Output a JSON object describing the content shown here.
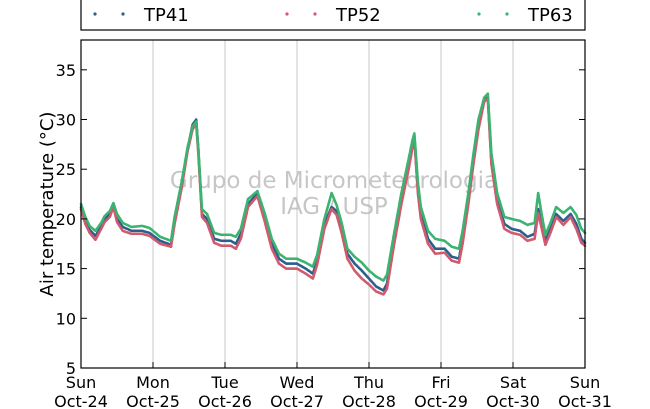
{
  "chart_data": {
    "type": "scatter",
    "ylabel": "Air temperature (°C)",
    "xlabel": "",
    "title": "",
    "ylim": [
      5,
      38
    ],
    "xlim": [
      0,
      7
    ],
    "yticks": [
      5,
      10,
      15,
      20,
      25,
      30,
      35
    ],
    "xticks": [
      {
        "x": 0,
        "day": "Sun",
        "date": "Oct-24"
      },
      {
        "x": 1,
        "day": "Mon",
        "date": "Oct-25"
      },
      {
        "x": 2,
        "day": "Tue",
        "date": "Oct-26"
      },
      {
        "x": 3,
        "day": "Wed",
        "date": "Oct-27"
      },
      {
        "x": 4,
        "day": "Thu",
        "date": "Oct-28"
      },
      {
        "x": 5,
        "day": "Fri",
        "date": "Oct-29"
      },
      {
        "x": 6,
        "day": "Sat",
        "date": "Oct-30"
      },
      {
        "x": 7,
        "day": "Sun",
        "date": "Oct-31"
      }
    ],
    "grid": "vertical",
    "legend_position": "top",
    "watermark": [
      "Grupo de Micrometeorologia",
      "IAG / USP"
    ],
    "series": [
      {
        "name": "TP41",
        "color": "#2c5f8d",
        "points": [
          [
            0,
            21.2
          ],
          [
            0.06,
            19.8
          ],
          [
            0.12,
            18.9
          ],
          [
            0.2,
            18.3
          ],
          [
            0.28,
            19.2
          ],
          [
            0.33,
            20.0
          ],
          [
            0.4,
            20.5
          ],
          [
            0.45,
            21.5
          ],
          [
            0.5,
            20.0
          ],
          [
            0.58,
            19.2
          ],
          [
            0.7,
            18.8
          ],
          [
            0.85,
            18.8
          ],
          [
            0.95,
            18.6
          ],
          [
            1.1,
            17.8
          ],
          [
            1.25,
            17.4
          ],
          [
            1.3,
            19.8
          ],
          [
            1.4,
            23.5
          ],
          [
            1.48,
            27.0
          ],
          [
            1.55,
            29.5
          ],
          [
            1.6,
            30.0
          ],
          [
            1.63,
            27.0
          ],
          [
            1.68,
            20.5
          ],
          [
            1.75,
            20.0
          ],
          [
            1.85,
            18.0
          ],
          [
            1.95,
            17.8
          ],
          [
            2.08,
            17.8
          ],
          [
            2.15,
            17.5
          ],
          [
            2.22,
            18.5
          ],
          [
            2.32,
            21.5
          ],
          [
            2.45,
            22.6
          ],
          [
            2.55,
            20.2
          ],
          [
            2.65,
            17.5
          ],
          [
            2.75,
            16.0
          ],
          [
            2.85,
            15.5
          ],
          [
            3.0,
            15.5
          ],
          [
            3.12,
            15.0
          ],
          [
            3.22,
            14.5
          ],
          [
            3.28,
            15.8
          ],
          [
            3.38,
            19.5
          ],
          [
            3.48,
            21.2
          ],
          [
            3.55,
            20.8
          ],
          [
            3.62,
            19.0
          ],
          [
            3.7,
            16.5
          ],
          [
            3.8,
            15.5
          ],
          [
            3.9,
            14.8
          ],
          [
            4.0,
            14.0
          ],
          [
            4.1,
            13.2
          ],
          [
            4.2,
            12.8
          ],
          [
            4.25,
            13.5
          ],
          [
            4.35,
            18.0
          ],
          [
            4.45,
            22.0
          ],
          [
            4.55,
            25.5
          ],
          [
            4.6,
            27.5
          ],
          [
            4.63,
            28.3
          ],
          [
            4.68,
            23.0
          ],
          [
            4.72,
            20.5
          ],
          [
            4.82,
            18.0
          ],
          [
            4.92,
            17.0
          ],
          [
            5.05,
            17.0
          ],
          [
            5.15,
            16.2
          ],
          [
            5.25,
            16.0
          ],
          [
            5.3,
            18.0
          ],
          [
            5.38,
            22.0
          ],
          [
            5.45,
            26.0
          ],
          [
            5.52,
            29.5
          ],
          [
            5.6,
            32.0
          ],
          [
            5.65,
            32.3
          ],
          [
            5.7,
            26.0
          ],
          [
            5.78,
            22.0
          ],
          [
            5.88,
            19.5
          ],
          [
            5.98,
            19.0
          ],
          [
            6.1,
            18.8
          ],
          [
            6.2,
            18.2
          ],
          [
            6.3,
            18.5
          ],
          [
            6.35,
            21.0
          ],
          [
            6.4,
            19.5
          ],
          [
            6.45,
            17.8
          ],
          [
            6.52,
            19.0
          ],
          [
            6.6,
            20.5
          ],
          [
            6.7,
            19.8
          ],
          [
            6.8,
            20.5
          ],
          [
            6.88,
            19.5
          ],
          [
            6.95,
            18.0
          ],
          [
            7.0,
            17.6
          ]
        ]
      },
      {
        "name": "TP52",
        "color": "#d05a6e",
        "points": [
          [
            0,
            21.0
          ],
          [
            0.06,
            19.5
          ],
          [
            0.12,
            18.6
          ],
          [
            0.2,
            17.9
          ],
          [
            0.28,
            19.0
          ],
          [
            0.33,
            19.7
          ],
          [
            0.4,
            20.2
          ],
          [
            0.45,
            21.2
          ],
          [
            0.5,
            19.7
          ],
          [
            0.58,
            18.8
          ],
          [
            0.7,
            18.5
          ],
          [
            0.85,
            18.5
          ],
          [
            0.95,
            18.3
          ],
          [
            1.1,
            17.5
          ],
          [
            1.25,
            17.2
          ],
          [
            1.3,
            19.5
          ],
          [
            1.4,
            23.2
          ],
          [
            1.48,
            26.8
          ],
          [
            1.55,
            29.0
          ],
          [
            1.6,
            29.6
          ],
          [
            1.63,
            26.5
          ],
          [
            1.68,
            20.2
          ],
          [
            1.75,
            19.6
          ],
          [
            1.85,
            17.6
          ],
          [
            1.95,
            17.3
          ],
          [
            2.08,
            17.3
          ],
          [
            2.15,
            17.0
          ],
          [
            2.22,
            18.0
          ],
          [
            2.32,
            21.2
          ],
          [
            2.45,
            22.3
          ],
          [
            2.55,
            19.8
          ],
          [
            2.65,
            17.0
          ],
          [
            2.75,
            15.5
          ],
          [
            2.85,
            15.0
          ],
          [
            3.0,
            15.0
          ],
          [
            3.12,
            14.5
          ],
          [
            3.22,
            14.0
          ],
          [
            3.28,
            15.4
          ],
          [
            3.38,
            19.0
          ],
          [
            3.48,
            21.0
          ],
          [
            3.55,
            20.4
          ],
          [
            3.62,
            18.6
          ],
          [
            3.7,
            16.0
          ],
          [
            3.8,
            14.8
          ],
          [
            3.9,
            14.0
          ],
          [
            4.0,
            13.4
          ],
          [
            4.1,
            12.7
          ],
          [
            4.2,
            12.4
          ],
          [
            4.25,
            13.0
          ],
          [
            4.35,
            17.5
          ],
          [
            4.45,
            21.5
          ],
          [
            4.55,
            25.0
          ],
          [
            4.6,
            27.0
          ],
          [
            4.63,
            28.0
          ],
          [
            4.68,
            22.5
          ],
          [
            4.72,
            20.0
          ],
          [
            4.82,
            17.5
          ],
          [
            4.92,
            16.5
          ],
          [
            5.05,
            16.6
          ],
          [
            5.15,
            15.8
          ],
          [
            5.25,
            15.6
          ],
          [
            5.3,
            17.5
          ],
          [
            5.38,
            21.5
          ],
          [
            5.45,
            25.5
          ],
          [
            5.52,
            29.0
          ],
          [
            5.6,
            31.8
          ],
          [
            5.65,
            32.1
          ],
          [
            5.7,
            25.5
          ],
          [
            5.78,
            21.5
          ],
          [
            5.88,
            19.0
          ],
          [
            5.98,
            18.6
          ],
          [
            6.1,
            18.4
          ],
          [
            6.2,
            17.8
          ],
          [
            6.3,
            18.0
          ],
          [
            6.35,
            20.6
          ],
          [
            6.4,
            19.0
          ],
          [
            6.45,
            17.4
          ],
          [
            6.52,
            18.6
          ],
          [
            6.6,
            20.2
          ],
          [
            6.7,
            19.4
          ],
          [
            6.8,
            20.2
          ],
          [
            6.88,
            19.0
          ],
          [
            6.95,
            17.6
          ],
          [
            7.0,
            17.3
          ]
        ]
      },
      {
        "name": "TP63",
        "color": "#3cb371",
        "points": [
          [
            0,
            21.5
          ],
          [
            0.06,
            20.2
          ],
          [
            0.12,
            19.3
          ],
          [
            0.2,
            18.8
          ],
          [
            0.28,
            19.6
          ],
          [
            0.33,
            20.3
          ],
          [
            0.4,
            20.8
          ],
          [
            0.45,
            21.6
          ],
          [
            0.5,
            20.5
          ],
          [
            0.58,
            19.6
          ],
          [
            0.7,
            19.2
          ],
          [
            0.85,
            19.3
          ],
          [
            0.95,
            19.1
          ],
          [
            1.1,
            18.2
          ],
          [
            1.25,
            17.8
          ],
          [
            1.3,
            20.2
          ],
          [
            1.4,
            23.8
          ],
          [
            1.48,
            27.2
          ],
          [
            1.55,
            29.3
          ],
          [
            1.6,
            29.8
          ],
          [
            1.63,
            27.0
          ],
          [
            1.68,
            21.0
          ],
          [
            1.75,
            20.5
          ],
          [
            1.85,
            18.6
          ],
          [
            1.95,
            18.4
          ],
          [
            2.08,
            18.4
          ],
          [
            2.15,
            18.2
          ],
          [
            2.22,
            19.0
          ],
          [
            2.32,
            22.0
          ],
          [
            2.45,
            22.8
          ],
          [
            2.55,
            20.6
          ],
          [
            2.65,
            18.0
          ],
          [
            2.75,
            16.5
          ],
          [
            2.85,
            16.0
          ],
          [
            3.0,
            16.0
          ],
          [
            3.12,
            15.6
          ],
          [
            3.22,
            15.2
          ],
          [
            3.28,
            16.4
          ],
          [
            3.38,
            20.0
          ],
          [
            3.48,
            22.6
          ],
          [
            3.55,
            21.4
          ],
          [
            3.62,
            19.6
          ],
          [
            3.7,
            17.0
          ],
          [
            3.8,
            16.2
          ],
          [
            3.9,
            15.6
          ],
          [
            4.0,
            14.8
          ],
          [
            4.1,
            14.2
          ],
          [
            4.2,
            13.8
          ],
          [
            4.25,
            14.4
          ],
          [
            4.35,
            18.6
          ],
          [
            4.45,
            22.6
          ],
          [
            4.55,
            26.0
          ],
          [
            4.6,
            27.8
          ],
          [
            4.63,
            28.6
          ],
          [
            4.68,
            23.6
          ],
          [
            4.72,
            21.2
          ],
          [
            4.82,
            18.8
          ],
          [
            4.92,
            18.0
          ],
          [
            5.05,
            17.8
          ],
          [
            5.15,
            17.2
          ],
          [
            5.25,
            17.0
          ],
          [
            5.3,
            18.8
          ],
          [
            5.38,
            22.6
          ],
          [
            5.45,
            26.5
          ],
          [
            5.52,
            30.0
          ],
          [
            5.6,
            32.2
          ],
          [
            5.65,
            32.6
          ],
          [
            5.7,
            26.6
          ],
          [
            5.78,
            22.6
          ],
          [
            5.88,
            20.2
          ],
          [
            5.98,
            20.0
          ],
          [
            6.1,
            19.8
          ],
          [
            6.2,
            19.4
          ],
          [
            6.3,
            19.6
          ],
          [
            6.35,
            22.6
          ],
          [
            6.4,
            20.4
          ],
          [
            6.45,
            18.4
          ],
          [
            6.52,
            19.6
          ],
          [
            6.6,
            21.2
          ],
          [
            6.7,
            20.6
          ],
          [
            6.8,
            21.2
          ],
          [
            6.88,
            20.4
          ],
          [
            6.95,
            19.0
          ],
          [
            7.0,
            18.6
          ]
        ]
      }
    ]
  }
}
